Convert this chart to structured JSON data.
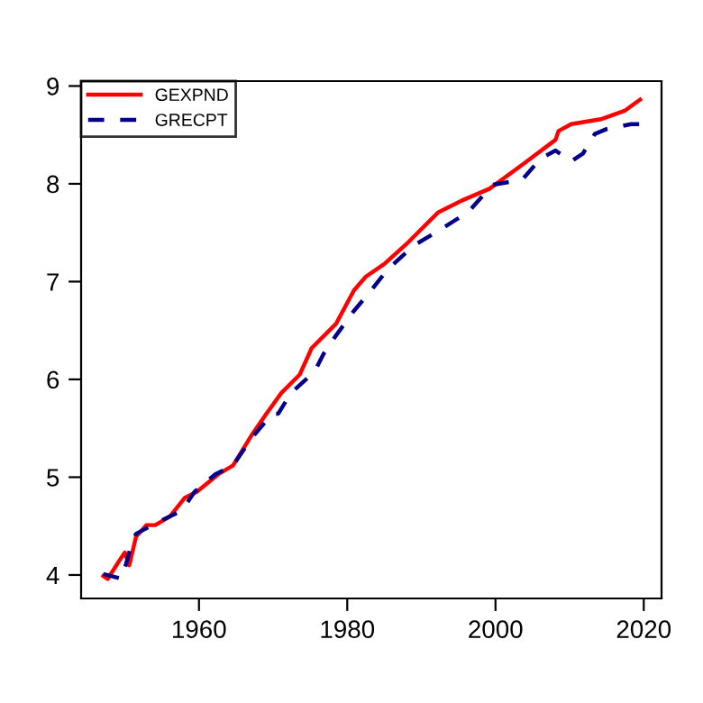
{
  "chart_data": {
    "type": "line",
    "xlim": [
      1944.1,
      2022.4
    ],
    "ylim": [
      3.76,
      9.05
    ],
    "xticks": [
      1960,
      1980,
      2000,
      2020
    ],
    "yticks": [
      4,
      5,
      6,
      7,
      8,
      9
    ],
    "grid": false,
    "legend": "top left",
    "marker": "none",
    "series": [
      {
        "name": "GEXPND",
        "color": "#ff0000",
        "line_style": "solid",
        "x": [
          1947.1,
          1947.7,
          1949.2,
          1950,
          1950.6,
          1951.5,
          1952.9,
          1954.1,
          1956.1,
          1958.1,
          1959.7,
          1962.6,
          1964.6,
          1967.1,
          1969.1,
          1971.1,
          1973.6,
          1975.2,
          1978.5,
          1980.9,
          1982.5,
          1985,
          1988.2,
          1992.3,
          1995.5,
          1999.2,
          2003.7,
          2008.1,
          2008.5,
          2010.2,
          2014.2,
          2017.5,
          2019.5
        ],
        "values": [
          3.99,
          3.96,
          4.14,
          4.23,
          4.1,
          4.39,
          4.51,
          4.51,
          4.6,
          4.79,
          4.85,
          5.03,
          5.12,
          5.43,
          5.65,
          5.86,
          6.05,
          6.32,
          6.57,
          6.91,
          7.05,
          7.18,
          7.4,
          7.71,
          7.83,
          7.95,
          8.2,
          8.45,
          8.54,
          8.61,
          8.66,
          8.75,
          8.86
        ]
      },
      {
        "name": "GRECPT",
        "color": "#00008b",
        "line_style": "dashed",
        "x": [
          1947.1,
          1949.6,
          1950.7,
          1951.5,
          1953.7,
          1957.7,
          1959.4,
          1962.2,
          1964.6,
          1967.1,
          1969.9,
          1970.7,
          1972.4,
          1975.6,
          1976.8,
          1978.5,
          1980.9,
          1982.9,
          1985.4,
          1989,
          1992.3,
          1996.3,
          1999.6,
          2002,
          2003.7,
          2006.1,
          2008.1,
          2010.2,
          2011.8,
          2013.4,
          2015,
          2018.3,
          2019.5
        ],
        "values": [
          4.01,
          3.96,
          4.26,
          4.42,
          4.51,
          4.66,
          4.85,
          5.03,
          5.12,
          5.4,
          5.65,
          5.65,
          5.86,
          6.08,
          6.26,
          6.45,
          6.7,
          6.88,
          7.12,
          7.37,
          7.52,
          7.71,
          7.99,
          8.02,
          8.05,
          8.26,
          8.34,
          8.23,
          8.31,
          8.51,
          8.56,
          8.61,
          8.61
        ]
      }
    ]
  }
}
